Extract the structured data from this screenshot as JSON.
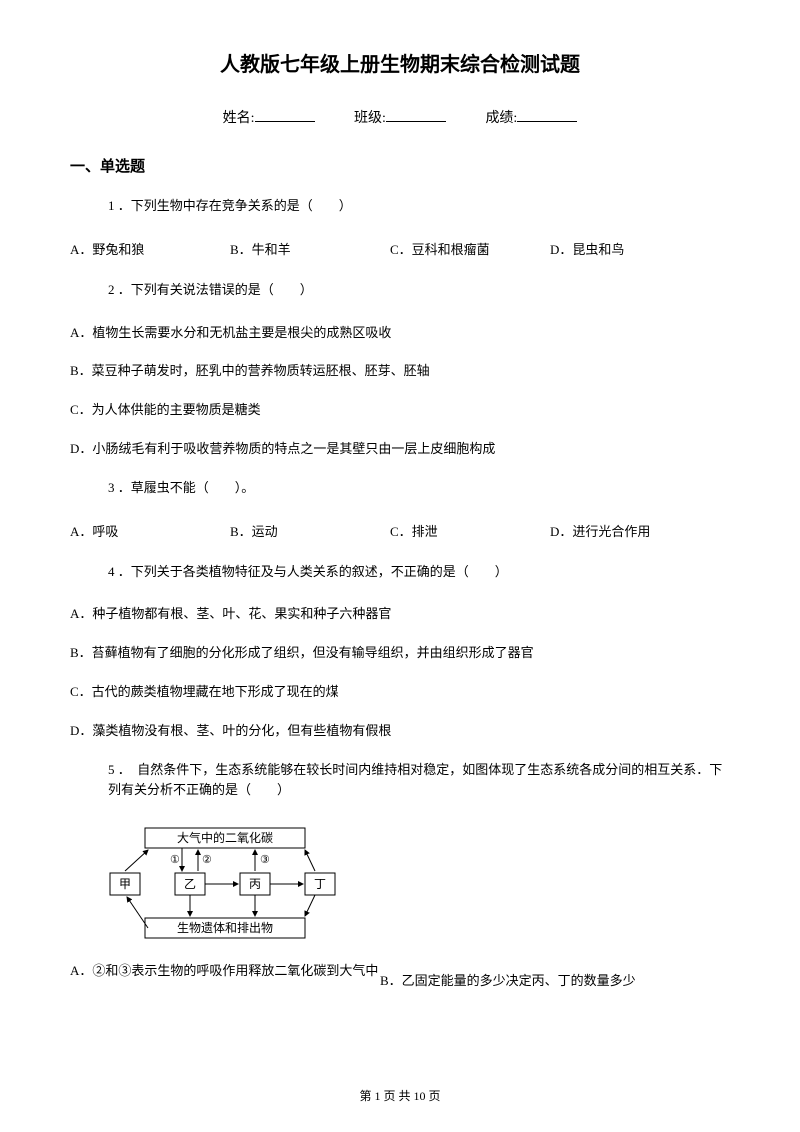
{
  "title": "人教版七年级上册生物期末综合检测试题",
  "info": {
    "name_label": "姓名:",
    "class_label": "班级:",
    "score_label": "成绩:"
  },
  "section1": {
    "header": "一、单选题",
    "q1": {
      "text": "1 ．下列生物中存在竞争关系的是（　　）",
      "A": "A．野兔和狼",
      "B": "B．牛和羊",
      "C": "C．豆科和根瘤菌",
      "D": "D．昆虫和鸟"
    },
    "q2": {
      "text": "2 ．下列有关说法错误的是（　　）",
      "A": "A．植物生长需要水分和无机盐主要是根尖的成熟区吸收",
      "B": "B．菜豆种子萌发时，胚乳中的营养物质转运胚根、胚芽、胚轴",
      "C": "C．为人体供能的主要物质是糖类",
      "D": "D．小肠绒毛有利于吸收营养物质的特点之一是其壁只由一层上皮细胞构成"
    },
    "q3": {
      "text": "3 ．草履虫不能（　　）。",
      "A": "A．呼吸",
      "B": "B．运动",
      "C": "C．排泄",
      "D": "D．进行光合作用"
    },
    "q4": {
      "text": "4 ．下列关于各类植物特征及与人类关系的叙述，不正确的是（　　）",
      "A": "A．种子植物都有根、茎、叶、花、果实和种子六种器官",
      "B": "B．苔藓植物有了细胞的分化形成了组织，但没有输导组织，并由组织形成了器官",
      "C": "C．古代的蕨类植物埋藏在地下形成了现在的煤",
      "D": "D．藻类植物没有根、茎、叶的分化，但有些植物有假根"
    },
    "q5": {
      "text": "5 ．　自然条件下，生态系统能够在较长时间内维持相对稳定，如图体现了生态系统各成分间的相互关系．下列有关分析不正确的是（　　）",
      "A": "A．②和③表示生物的呼吸作用释放二氧化碳到大气中",
      "B": "B．乙固定能量的多少决定丙、丁的数量多少"
    }
  },
  "diagram": {
    "top_box": "大气中的二氧化碳",
    "jia": "甲",
    "yi": "乙",
    "bing": "丙",
    "ding": "丁",
    "bottom_box": "生物遗体和排出物",
    "n1": "①",
    "n2": "②",
    "n3": "③",
    "stroke": "#000000",
    "text_color": "#000000",
    "bg": "#ffffff",
    "font_size": 12
  },
  "footer": "第 1 页 共 10 页"
}
